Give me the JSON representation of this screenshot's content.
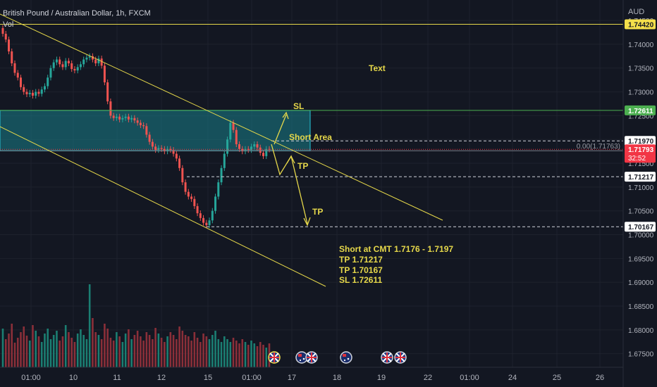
{
  "header": {
    "symbol_title": "British Pound / Australian Dollar, 1h, FXCM",
    "volume_label": "Vol",
    "currency": "AUD"
  },
  "chart_data": {
    "type": "candlestick",
    "title": "British Pound / Australian Dollar, 1h, FXCM",
    "y_axis": {
      "unit": "AUD",
      "range": [
        1.668,
        1.7493
      ],
      "ticks": [
        "1.74500",
        "1.74000",
        "1.73500",
        "1.73000",
        "1.72500",
        "1.72000",
        "1.71500",
        "1.71000",
        "1.70500",
        "1.70000",
        "1.69500",
        "1.69000",
        "1.68500",
        "1.68000",
        "1.67500"
      ]
    },
    "x_axis": {
      "ticks": [
        {
          "label": "01:00",
          "at": 44
        },
        {
          "label": "10",
          "at": 104
        },
        {
          "label": "11",
          "at": 166
        },
        {
          "label": "12",
          "at": 229
        },
        {
          "label": "15",
          "at": 295
        },
        {
          "label": "01:00",
          "at": 357
        },
        {
          "label": "17",
          "at": 414
        },
        {
          "label": "18",
          "at": 478
        },
        {
          "label": "19",
          "at": 541
        },
        {
          "label": "22",
          "at": 607
        },
        {
          "label": "01:00",
          "at": 666
        },
        {
          "label": "24",
          "at": 727
        },
        {
          "label": "25",
          "at": 790
        },
        {
          "label": "26",
          "at": 851
        }
      ]
    },
    "price_levels": [
      {
        "name": "upper-line",
        "value": 1.7442,
        "label": "1.74420",
        "color": "#e6d84a"
      },
      {
        "name": "sl",
        "value": 1.72611,
        "label": "1.72611",
        "color": "#4caf50"
      },
      {
        "name": "short-top",
        "value": 1.7197,
        "label": "1.71970",
        "color": "#ffffff"
      },
      {
        "name": "current",
        "value": 1.71793,
        "label": "1.71793",
        "color": "#f23645",
        "countdown": "32:52"
      },
      {
        "name": "tp1",
        "value": 1.71217,
        "label": "1.71217",
        "color": "#ffffff"
      },
      {
        "name": "tp2",
        "value": 1.70167,
        "label": "1.70167",
        "color": "#ffffff"
      }
    ],
    "fib_label": "0.00(1.71763)",
    "short_zone": {
      "top": 1.72611,
      "bottom": 1.7176,
      "label": "Short Area"
    },
    "annotations": [
      {
        "name": "text-label",
        "text": "Text"
      },
      {
        "name": "sl-label",
        "text": "SL"
      },
      {
        "name": "tp-label-1",
        "text": "TP"
      },
      {
        "name": "tp-label-2",
        "text": "TP"
      }
    ],
    "trade_note": [
      "Short at CMT 1.7176 - 1.7197",
      "TP 1.71217",
      "TP 1.70167",
      "SL 1.72611"
    ],
    "close_series": [
      1.7422,
      1.741,
      1.7385,
      1.736,
      1.734,
      1.733,
      1.731,
      1.73,
      1.7295,
      1.7298,
      1.7292,
      1.73,
      1.7296,
      1.7305,
      1.7312,
      1.733,
      1.735,
      1.7362,
      1.7368,
      1.7358,
      1.7352,
      1.7365,
      1.736,
      1.7348,
      1.7345,
      1.7352,
      1.7358,
      1.7368,
      1.7372,
      1.7375,
      1.7368,
      1.736,
      1.737,
      1.7355,
      1.732,
      1.728,
      1.725,
      1.7245,
      1.7248,
      1.7242,
      1.7245,
      1.7248,
      1.7242,
      1.7245,
      1.724,
      1.7235,
      1.723,
      1.7228,
      1.721,
      1.7195,
      1.7185,
      1.7178,
      1.7182,
      1.718,
      1.7175,
      1.718,
      1.7178,
      1.717,
      1.716,
      1.714,
      1.711,
      1.709,
      1.708,
      1.7075,
      1.706,
      1.7045,
      1.7035,
      1.7025,
      1.702,
      1.703,
      1.705,
      1.708,
      1.711,
      1.714,
      1.717,
      1.72,
      1.7235,
      1.722,
      1.719,
      1.718,
      1.7175,
      1.718,
      1.7178,
      1.7185,
      1.719,
      1.7183,
      1.7172,
      1.7165,
      1.718,
      1.7179
    ],
    "volume_series": [
      55,
      40,
      48,
      62,
      35,
      42,
      50,
      58,
      45,
      38,
      60,
      52,
      44,
      36,
      48,
      55,
      40,
      46,
      52,
      38,
      44,
      60,
      50,
      42,
      36,
      48,
      54,
      46,
      40,
      118,
      70,
      50,
      46,
      40,
      62,
      55,
      42,
      38,
      50,
      44,
      36,
      48,
      54,
      40,
      46,
      52,
      44,
      38,
      50,
      46,
      40,
      56,
      48,
      42,
      36,
      44,
      50,
      46,
      40,
      58,
      52,
      46,
      44,
      38,
      50,
      42,
      36,
      48,
      44,
      40,
      46,
      52,
      40,
      36,
      44,
      40,
      36,
      42,
      38,
      34,
      40,
      36,
      32,
      38,
      34,
      30,
      36,
      32,
      28,
      34
    ],
    "event_icons": [
      {
        "name": "flag-icon-uk",
        "at": 389
      },
      {
        "name": "flag-icon-au",
        "at": 428
      },
      {
        "name": "flag-icon-uk",
        "at": 442
      },
      {
        "name": "flag-icon-au",
        "at": 491
      },
      {
        "name": "flag-icon-uk",
        "at": 549
      },
      {
        "name": "flag-icon-uk",
        "at": 568
      }
    ]
  }
}
